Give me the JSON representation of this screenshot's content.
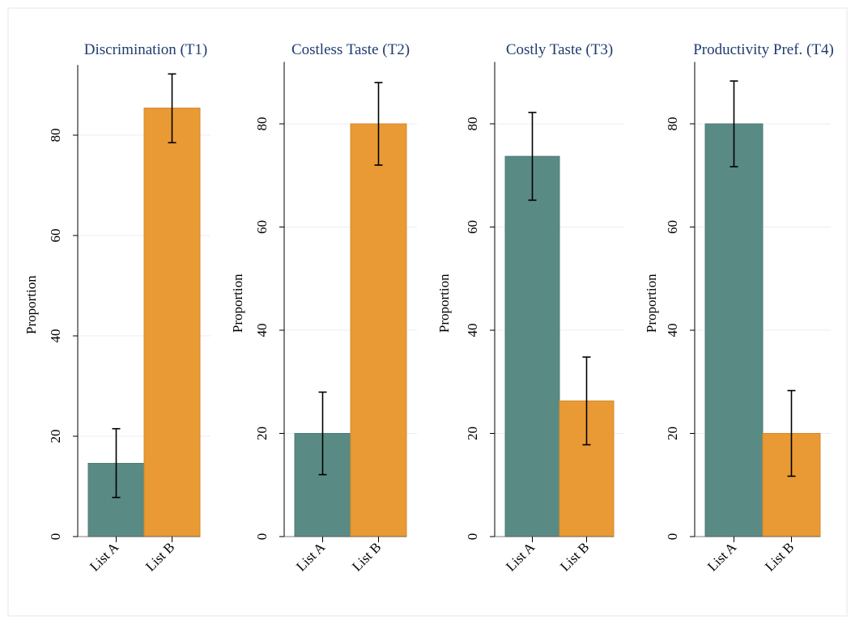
{
  "colors": {
    "list_a": "#5a8a84",
    "list_b": "#e99a35",
    "title": "#1f3b6e",
    "grid": "#ececec",
    "axis": "#000000",
    "frame": "#e6e6e6"
  },
  "chart_data": [
    {
      "type": "bar",
      "title": "Discrimination (T1)",
      "ylabel": "Proportion",
      "categories": [
        "List A",
        "List B"
      ],
      "values": [
        14.6,
        85.4
      ],
      "error_low": [
        7.8,
        78.5
      ],
      "error_high": [
        21.5,
        92.2
      ],
      "ylim": [
        0,
        94
      ],
      "yticks": [
        0,
        20,
        40,
        60,
        80
      ],
      "grid": true
    },
    {
      "type": "bar",
      "title": "Costless Taste (T2)",
      "ylabel": "Proportion",
      "categories": [
        "List A",
        "List B"
      ],
      "values": [
        20,
        80
      ],
      "error_low": [
        12,
        72
      ],
      "error_high": [
        28,
        88
      ],
      "ylim": [
        0,
        92
      ],
      "yticks": [
        0,
        20,
        40,
        60,
        80
      ],
      "grid": true
    },
    {
      "type": "bar",
      "title": "Costly Taste (T3)",
      "ylabel": "Proportion",
      "categories": [
        "List A",
        "List B"
      ],
      "values": [
        73.7,
        26.3
      ],
      "error_low": [
        65.2,
        17.8
      ],
      "error_high": [
        82.2,
        34.8
      ],
      "ylim": [
        0,
        92
      ],
      "yticks": [
        0,
        20,
        40,
        60,
        80
      ],
      "grid": true
    },
    {
      "type": "bar",
      "title": "Productivity Pref. (T4)",
      "ylabel": "Proportion",
      "categories": [
        "List A",
        "List B"
      ],
      "values": [
        80,
        20
      ],
      "error_low": [
        71.7,
        11.7
      ],
      "error_high": [
        88.3,
        28.3
      ],
      "ylim": [
        0,
        92
      ],
      "yticks": [
        0,
        20,
        40,
        60,
        80
      ],
      "grid": true
    }
  ]
}
